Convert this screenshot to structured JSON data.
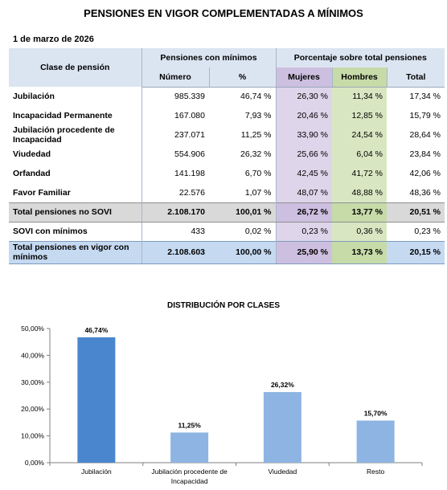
{
  "title": "PENSIONES EN VIGOR COMPLEMENTADAS A MÍNIMOS",
  "date": "1 de marzo de 2026",
  "table": {
    "col_clase": "Clase de pensión",
    "group_pensiones": "Pensiones con mínimos",
    "group_porcentaje": "Porcentaje sobre total pensiones",
    "col_numero": "Número",
    "col_pct": "%",
    "col_mujeres": "Mujeres",
    "col_hombres": "Hombres",
    "col_total": "Total",
    "rows": [
      {
        "clase": "Jubilación",
        "numero": "985.339",
        "pct": "46,74 %",
        "mujeres": "26,30 %",
        "hombres": "11,34 %",
        "total": "17,34 %"
      },
      {
        "clase": "Incapacidad Permanente",
        "numero": "167.080",
        "pct": "7,93 %",
        "mujeres": "20,46 %",
        "hombres": "12,85 %",
        "total": "15,79 %"
      },
      {
        "clase": "Jubilación procedente de Incapacidad",
        "numero": "237.071",
        "pct": "11,25 %",
        "mujeres": "33,90 %",
        "hombres": "24,54 %",
        "total": "28,64 %"
      },
      {
        "clase": "Viudedad",
        "numero": "554.906",
        "pct": "26,32 %",
        "mujeres": "25,66 %",
        "hombres": "6,04 %",
        "total": "23,84 %"
      },
      {
        "clase": "Orfandad",
        "numero": "141.198",
        "pct": "6,70 %",
        "mujeres": "42,45 %",
        "hombres": "41,72 %",
        "total": "42,06 %"
      },
      {
        "clase": "Favor Familiar",
        "numero": "22.576",
        "pct": "1,07 %",
        "mujeres": "48,07 %",
        "hombres": "48,88 %",
        "total": "48,36 %"
      }
    ],
    "total_no_sovi": {
      "clase": "Total pensiones no SOVI",
      "numero": "2.108.170",
      "pct": "100,01 %",
      "mujeres": "26,72 %",
      "hombres": "13,77 %",
      "total": "20,51 %"
    },
    "sovi": {
      "clase": "SOVI con mínimos",
      "numero": "433",
      "pct": "0,02 %",
      "mujeres": "0,23 %",
      "hombres": "0,36 %",
      "total": "0,23 %"
    },
    "total_vigor": {
      "clase": "Total pensiones en vigor con mínimos",
      "numero": "2.108.603",
      "pct": "100,00 %",
      "mujeres": "25,90 %",
      "hombres": "13,73 %",
      "total": "20,15 %"
    }
  },
  "chart_data": {
    "type": "bar",
    "title": "DISTRIBUCIÓN POR CLASES",
    "categories": [
      "Jubilación",
      "Jubilación procedente de Incapacidad",
      "Viudedad",
      "Resto"
    ],
    "values": [
      46.74,
      11.25,
      26.32,
      15.7
    ],
    "data_labels": [
      "46,74%",
      "11,25%",
      "26,32%",
      "15,70%"
    ],
    "ylim": [
      0,
      50
    ],
    "yticks": [
      "0,00%",
      "10,00%",
      "20,00%",
      "30,00%",
      "40,00%",
      "50,00%"
    ],
    "colors": [
      "#4a86cd",
      "#8db4e2",
      "#8db4e2",
      "#8db4e2"
    ],
    "legend": "none",
    "grid": false
  }
}
